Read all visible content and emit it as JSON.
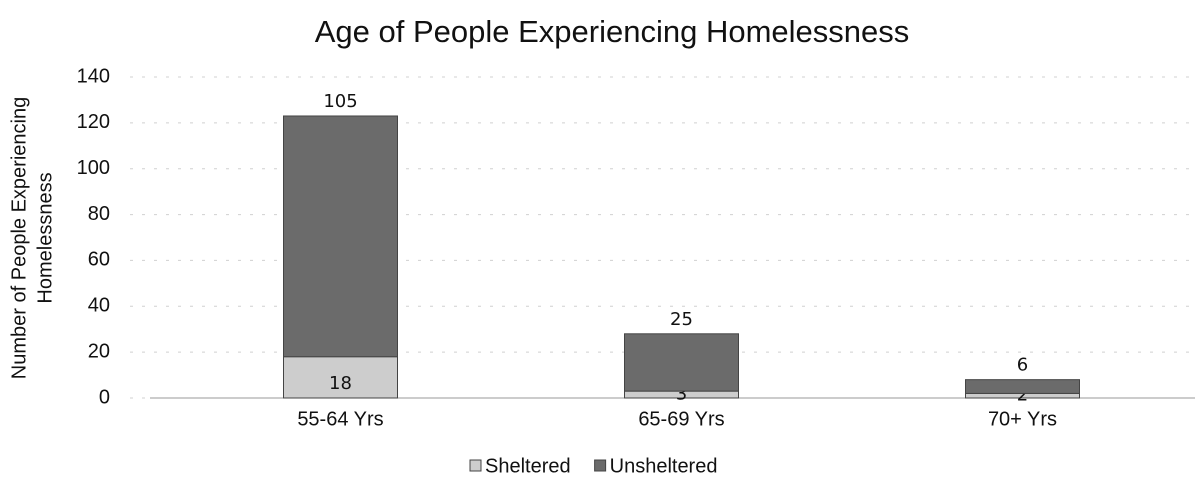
{
  "chart_data": {
    "type": "stacked_bar",
    "title": "Age of People Experiencing Homelessness",
    "y_label": [
      "Number of People Experiencing",
      "Homelessness"
    ],
    "categories": [
      "55-64 Yrs",
      "65-69 Yrs",
      "70+ Yrs"
    ],
    "series": [
      {
        "name": "Sheltered",
        "color": "#cdcdcd",
        "values": [
          18,
          3,
          2
        ]
      },
      {
        "name": "Unsheltered",
        "color": "#6b6b6b",
        "values": [
          105,
          25,
          6
        ]
      }
    ],
    "ylim": [
      0,
      140
    ],
    "yticks": [
      0,
      20,
      40,
      60,
      80,
      100,
      120,
      140
    ],
    "grid": true,
    "legend": "bottom"
  }
}
